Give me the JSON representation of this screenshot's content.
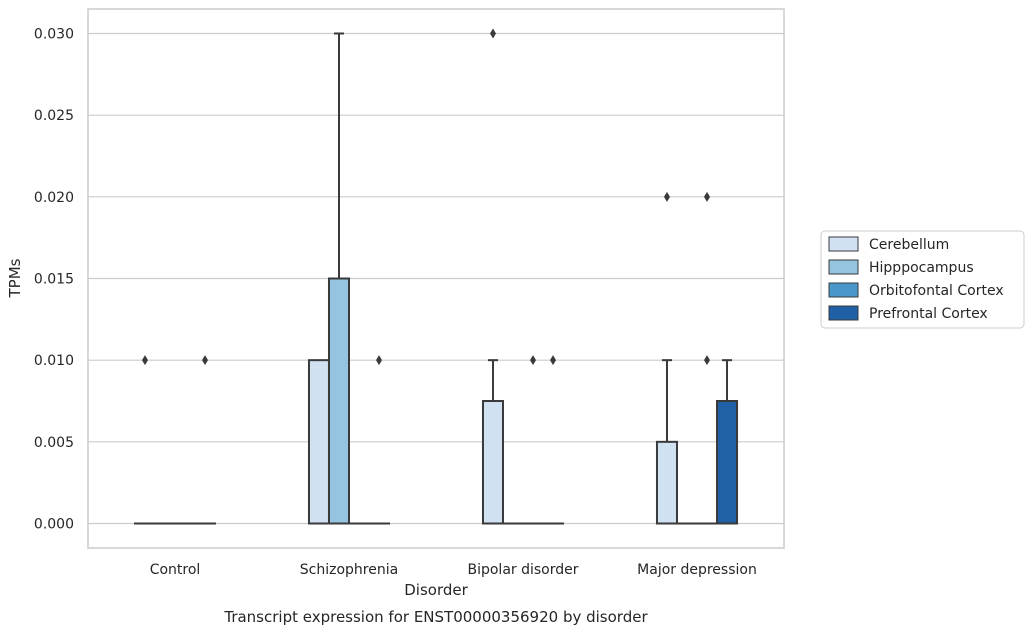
{
  "chart_data": {
    "type": "box",
    "title": "Transcript expression for ENST00000356920 by disorder",
    "xlabel": "Disorder",
    "ylabel": "TPMs",
    "ylim": [
      -0.0015,
      0.0315
    ],
    "yticks": [
      0.0,
      0.005,
      0.01,
      0.015,
      0.02,
      0.025,
      0.03
    ],
    "ytick_labels": [
      "0.000",
      "0.005",
      "0.010",
      "0.015",
      "0.020",
      "0.025",
      "0.030"
    ],
    "grid": "horizontal",
    "legend_position": "right",
    "categories": [
      "Control",
      "Schizophrenia",
      "Bipolar disorder",
      "Major depression"
    ],
    "series": [
      {
        "name": "Cerebellum",
        "color": "#d0e1f2",
        "boxes": [
          {
            "q1": 0.0,
            "median": 0.0,
            "q3": 0.0,
            "whisker_low": 0.0,
            "whisker_high": 0.0,
            "outliers": [
              0.01
            ]
          },
          {
            "q1": 0.0,
            "median": 0.0,
            "q3": 0.01,
            "whisker_low": 0.0,
            "whisker_high": 0.01,
            "outliers": []
          },
          {
            "q1": 0.0,
            "median": 0.0,
            "q3": 0.0075,
            "whisker_low": 0.0,
            "whisker_high": 0.01,
            "outliers": [
              0.03
            ]
          },
          {
            "q1": 0.0,
            "median": 0.0,
            "q3": 0.005,
            "whisker_low": 0.0,
            "whisker_high": 0.01,
            "outliers": [
              0.02
            ]
          }
        ]
      },
      {
        "name": "Hipppocampus",
        "color": "#94c4df",
        "boxes": [
          {
            "q1": 0.0,
            "median": 0.0,
            "q3": 0.0,
            "whisker_low": 0.0,
            "whisker_high": 0.0,
            "outliers": []
          },
          {
            "q1": 0.0,
            "median": 0.0,
            "q3": 0.015,
            "whisker_low": 0.0,
            "whisker_high": 0.03,
            "outliers": []
          },
          {
            "q1": 0.0,
            "median": 0.0,
            "q3": 0.0,
            "whisker_low": 0.0,
            "whisker_high": 0.0,
            "outliers": []
          },
          {
            "q1": 0.0,
            "median": 0.0,
            "q3": 0.0,
            "whisker_low": 0.0,
            "whisker_high": 0.0,
            "outliers": []
          }
        ]
      },
      {
        "name": "Orbitofontal Cortex",
        "color": "#4a98c9",
        "boxes": [
          {
            "q1": 0.0,
            "median": 0.0,
            "q3": 0.0,
            "whisker_low": 0.0,
            "whisker_high": 0.0,
            "outliers": []
          },
          {
            "q1": 0.0,
            "median": 0.0,
            "q3": 0.0,
            "whisker_low": 0.0,
            "whisker_high": 0.0,
            "outliers": []
          },
          {
            "q1": 0.0,
            "median": 0.0,
            "q3": 0.0,
            "whisker_low": 0.0,
            "whisker_high": 0.0,
            "outliers": [
              0.01
            ]
          },
          {
            "q1": 0.0,
            "median": 0.0,
            "q3": 0.0,
            "whisker_low": 0.0,
            "whisker_high": 0.0,
            "outliers": [
              0.02,
              0.01
            ]
          }
        ]
      },
      {
        "name": "Prefrontal Cortex",
        "color": "#2060a7",
        "boxes": [
          {
            "q1": 0.0,
            "median": 0.0,
            "q3": 0.0,
            "whisker_low": 0.0,
            "whisker_high": 0.0,
            "outliers": [
              0.01
            ]
          },
          {
            "q1": 0.0,
            "median": 0.0,
            "q3": 0.0,
            "whisker_low": 0.0,
            "whisker_high": 0.0,
            "outliers": [
              0.01
            ]
          },
          {
            "q1": 0.0,
            "median": 0.0,
            "q3": 0.0,
            "whisker_low": 0.0,
            "whisker_high": 0.0,
            "outliers": [
              0.01
            ]
          },
          {
            "q1": 0.0,
            "median": 0.0,
            "q3": 0.0075,
            "whisker_low": 0.0,
            "whisker_high": 0.01,
            "outliers": []
          }
        ]
      }
    ]
  }
}
